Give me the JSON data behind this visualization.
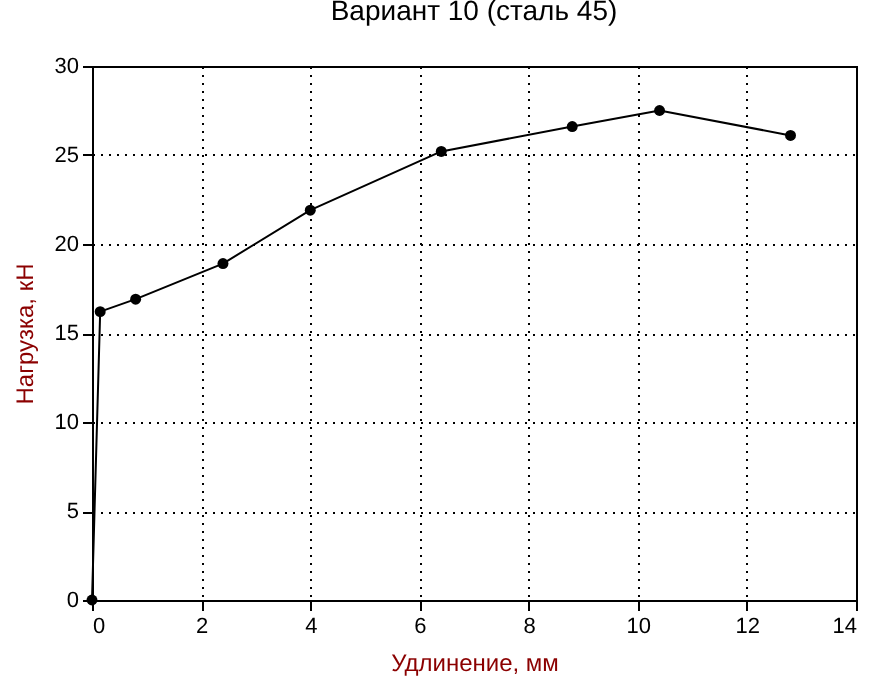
{
  "chart_data": {
    "type": "line",
    "title": "Вариант 10 (сталь 45)",
    "xlabel": "Удлинение, мм",
    "ylabel": "Нагрузка, кН",
    "x": [
      0,
      0.15,
      0.8,
      2.4,
      4.0,
      6.4,
      8.8,
      10.4,
      12.8
    ],
    "series": [
      {
        "color": "#000000",
        "values": [
          0,
          16.2,
          16.9,
          18.9,
          21.9,
          25.2,
          26.6,
          27.5,
          26.1
        ]
      }
    ],
    "xlim": [
      0,
      14
    ],
    "xticks": [
      0,
      2,
      4,
      6,
      8,
      10,
      12,
      14
    ],
    "ylim": [
      0,
      30
    ],
    "yticks": [
      0,
      5,
      10,
      15,
      20,
      25,
      30
    ],
    "grid": true,
    "marker": "circle",
    "line_style": "solid"
  }
}
